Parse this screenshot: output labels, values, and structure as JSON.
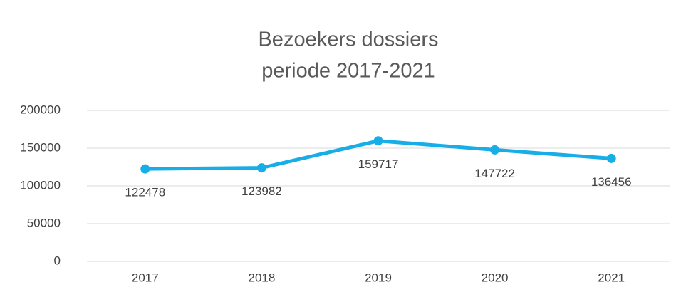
{
  "chart_data": {
    "type": "line",
    "title": [
      "Bezoekers dossiers",
      "periode 2017-2021"
    ],
    "categories": [
      "2017",
      "2018",
      "2019",
      "2020",
      "2021"
    ],
    "series": [
      {
        "color": "#17aee8",
        "values": [
          122478,
          123982,
          159717,
          147722,
          136456
        ]
      }
    ],
    "ylim": [
      0,
      200000
    ],
    "yticks": [
      0,
      50000,
      100000,
      150000,
      200000
    ],
    "grid": true
  }
}
